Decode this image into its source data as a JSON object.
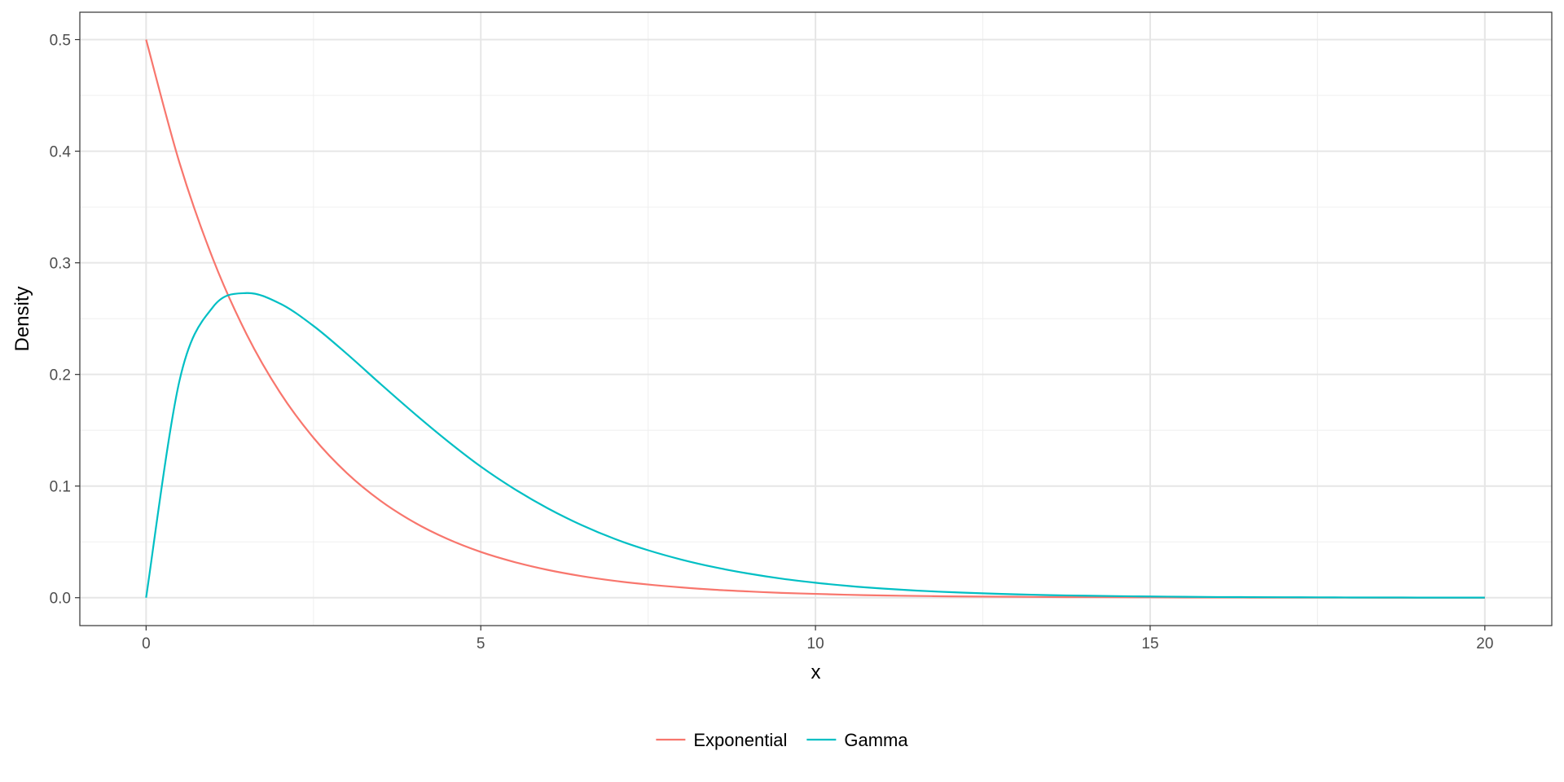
{
  "chart_data": {
    "type": "line",
    "title": "",
    "xlabel": "x",
    "ylabel": "Density",
    "xlim": [
      -0.99,
      21.0
    ],
    "ylim": [
      -0.025,
      0.5245
    ],
    "x_ticks": [
      0,
      5,
      10,
      15,
      20
    ],
    "x_tick_labels": [
      "0",
      "5",
      "10",
      "15",
      "20"
    ],
    "y_ticks": [
      0.0,
      0.1,
      0.2,
      0.3,
      0.4,
      0.5
    ],
    "y_tick_labels": [
      "0.0",
      "0.1",
      "0.2",
      "0.3",
      "0.4",
      "0.5"
    ],
    "grid": true,
    "legend_position": "bottom",
    "x_step": 0.5,
    "series": [
      {
        "name": "Exponential",
        "color": "#F8766D",
        "x": [
          0,
          0.5,
          1,
          1.5,
          2,
          2.5,
          3,
          3.5,
          4,
          4.5,
          5,
          5.5,
          6,
          6.5,
          7,
          7.5,
          8,
          8.5,
          9,
          9.5,
          10,
          10.5,
          11,
          11.5,
          12,
          12.5,
          13,
          13.5,
          14,
          14.5,
          15,
          15.5,
          16,
          16.5,
          17,
          17.5,
          18,
          18.5,
          19,
          19.5,
          20
        ],
        "values": [
          0.5,
          0.3894,
          0.3033,
          0.2362,
          0.1839,
          0.1433,
          0.1116,
          0.0869,
          0.0677,
          0.0527,
          0.041,
          0.032,
          0.0249,
          0.0194,
          0.0151,
          0.0118,
          0.0092,
          0.0071,
          0.0056,
          0.0043,
          0.0034,
          0.0026,
          0.002,
          0.0016,
          0.0012,
          0.001,
          0.0008,
          0.0006,
          0.0005,
          0.0004,
          0.0003,
          0.0002,
          0.0002,
          0.0001,
          0.0001,
          0.0001,
          0.0001,
          0,
          0,
          0,
          0
        ]
      },
      {
        "name": "Gamma",
        "color": "#00BFC4",
        "x": [
          0,
          0.5,
          1,
          1.5,
          2,
          2.5,
          3,
          3.5,
          4,
          4.5,
          5,
          5.5,
          6,
          6.5,
          7,
          7.5,
          8,
          8.5,
          9,
          9.5,
          10,
          10.5,
          11,
          11.5,
          12,
          12.5,
          13,
          13.5,
          14,
          14.5,
          15,
          15.5,
          16,
          16.5,
          17,
          17.5,
          18,
          18.5,
          19,
          19.5,
          20
        ],
        "values": [
          0,
          0.1947,
          0.2605,
          0.2729,
          0.2635,
          0.2435,
          0.2184,
          0.1916,
          0.1654,
          0.1405,
          0.1175,
          0.0975,
          0.0801,
          0.0652,
          0.0527,
          0.0425,
          0.0341,
          0.0272,
          0.0216,
          0.017,
          0.0134,
          0.0105,
          0.0082,
          0.0064,
          0.005,
          0.0039,
          0.003,
          0.0023,
          0.0018,
          0.0014,
          0.0011,
          0.0008,
          0.0006,
          0.0005,
          0.0004,
          0.0003,
          0.0002,
          0.0002,
          0.0001,
          0.0001,
          0.0001
        ]
      }
    ]
  }
}
